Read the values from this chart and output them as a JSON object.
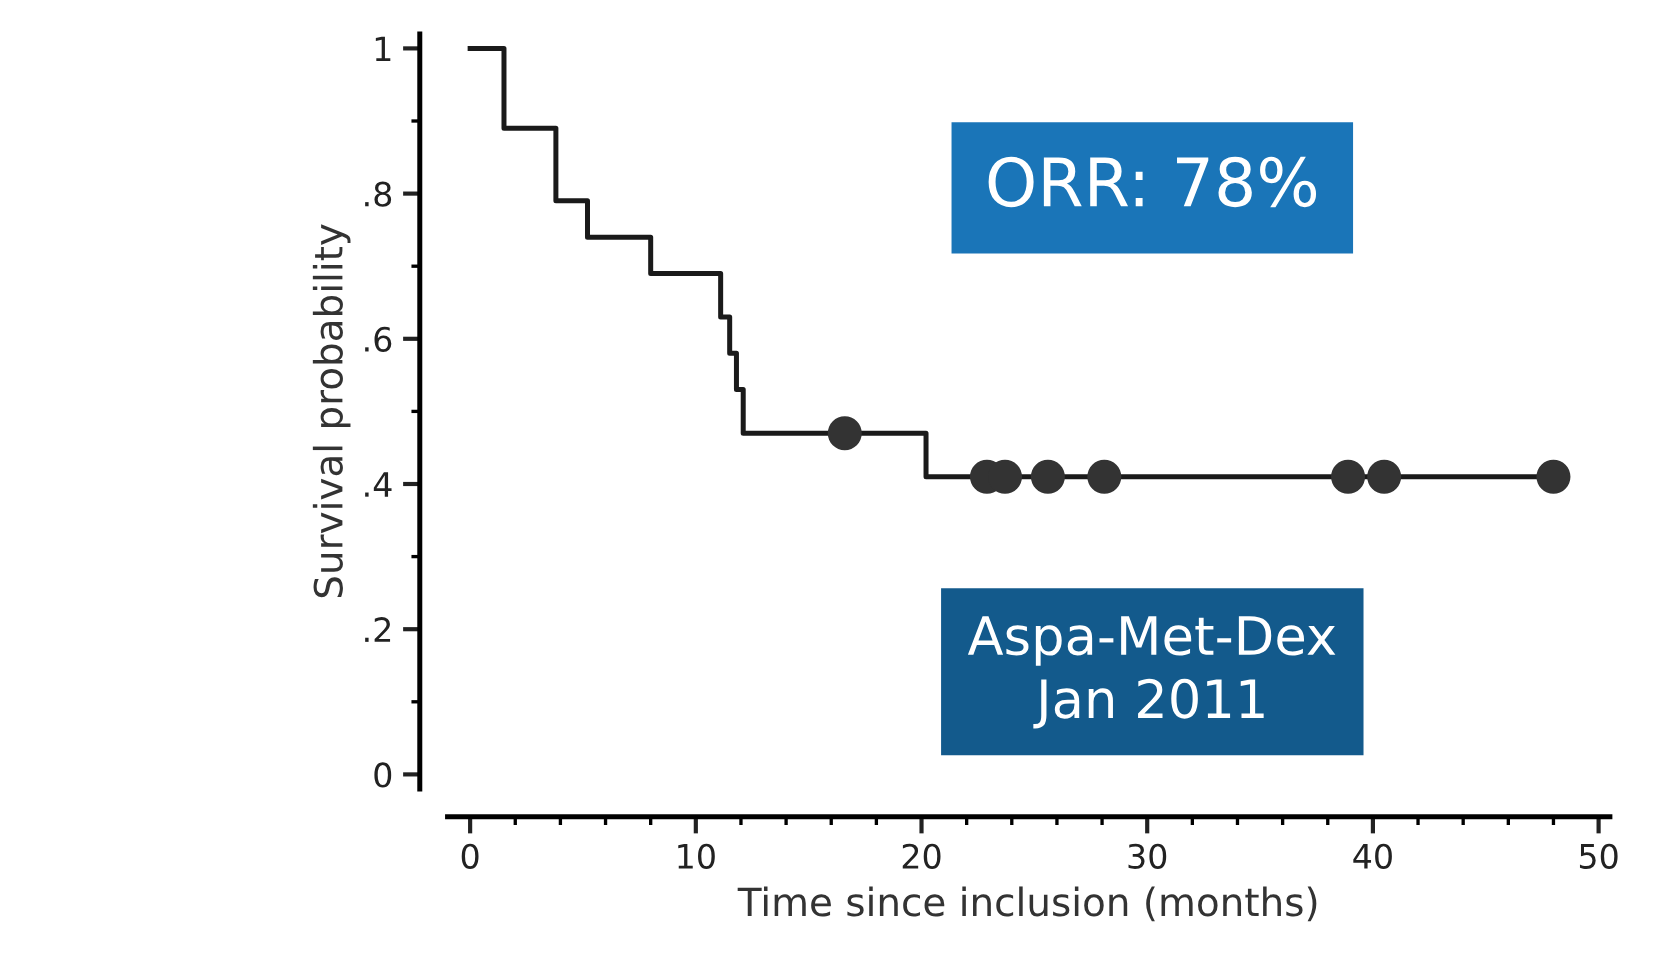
{
  "chart_data": {
    "type": "step",
    "xlabel": "Time since inclusion (months)",
    "ylabel": "Survival probability",
    "series": [
      {
        "color": "#1a1a1a",
        "x": [
          0,
          1.5,
          3.8,
          5.2,
          8.0,
          11.1,
          11.5,
          11.8,
          12.1,
          20.2,
          48.0
        ],
        "values": [
          1,
          0.89,
          0.79,
          0.74,
          0.69,
          0.63,
          0.58,
          0.53,
          0.47,
          0.41,
          0.41
        ]
      },
      {
        "type": "scatter",
        "color": "#333333",
        "marker": "circle",
        "x": [
          16.6,
          22.9,
          23.7,
          25.6,
          28.1,
          38.9,
          40.5,
          48.0
        ],
        "values": [
          0.47,
          0.41,
          0.41,
          0.41,
          0.41,
          0.41,
          0.41,
          0.41
        ]
      }
    ],
    "xlim": [
      -1,
      50.5
    ],
    "ylim": [
      -0.02,
      1.02
    ],
    "xticks": [
      0,
      10,
      20,
      30,
      40,
      50
    ],
    "yticks": [
      0,
      {
        "value": 0.2,
        "label": ".2"
      },
      {
        "value": 0.4,
        "label": ".4"
      },
      {
        "value": 0.6,
        "label": ".6"
      },
      {
        "value": 0.8,
        "label": ".8"
      },
      1
    ],
    "grid": false,
    "legend": false,
    "annotations": [
      "ORR: 78%",
      "Aspa-Met-Dex\nJan 2011"
    ]
  }
}
